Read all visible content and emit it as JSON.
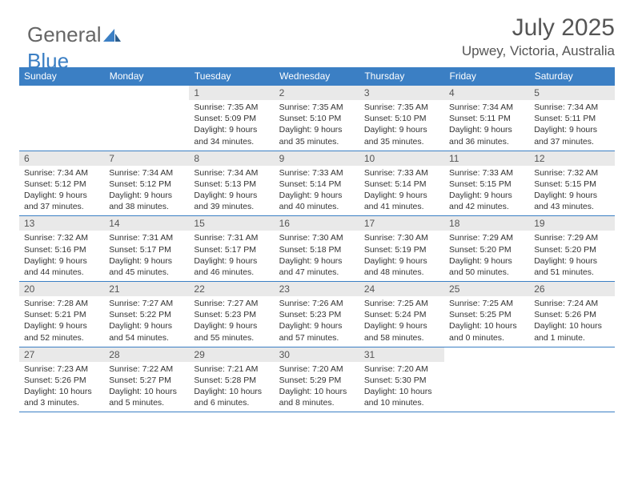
{
  "brand": {
    "part1": "General",
    "part2": "Blue"
  },
  "header": {
    "title": "July 2025",
    "location": "Upwey, Victoria, Australia"
  },
  "style": {
    "accent": "#3b7fc4",
    "daynum_bg": "#e9e9e9",
    "text_color": "#555",
    "body_bg": "#ffffff",
    "title_fontsize": 30,
    "location_fontsize": 17,
    "header_fontsize": 12,
    "cell_fontsize": 10.5
  },
  "weekdays": [
    "Sunday",
    "Monday",
    "Tuesday",
    "Wednesday",
    "Thursday",
    "Friday",
    "Saturday"
  ],
  "first_weekday_index": 2,
  "days": [
    {
      "n": "1",
      "sunrise": "7:35 AM",
      "sunset": "5:09 PM",
      "daylight": "9 hours and 34 minutes."
    },
    {
      "n": "2",
      "sunrise": "7:35 AM",
      "sunset": "5:10 PM",
      "daylight": "9 hours and 35 minutes."
    },
    {
      "n": "3",
      "sunrise": "7:35 AM",
      "sunset": "5:10 PM",
      "daylight": "9 hours and 35 minutes."
    },
    {
      "n": "4",
      "sunrise": "7:34 AM",
      "sunset": "5:11 PM",
      "daylight": "9 hours and 36 minutes."
    },
    {
      "n": "5",
      "sunrise": "7:34 AM",
      "sunset": "5:11 PM",
      "daylight": "9 hours and 37 minutes."
    },
    {
      "n": "6",
      "sunrise": "7:34 AM",
      "sunset": "5:12 PM",
      "daylight": "9 hours and 37 minutes."
    },
    {
      "n": "7",
      "sunrise": "7:34 AM",
      "sunset": "5:12 PM",
      "daylight": "9 hours and 38 minutes."
    },
    {
      "n": "8",
      "sunrise": "7:34 AM",
      "sunset": "5:13 PM",
      "daylight": "9 hours and 39 minutes."
    },
    {
      "n": "9",
      "sunrise": "7:33 AM",
      "sunset": "5:14 PM",
      "daylight": "9 hours and 40 minutes."
    },
    {
      "n": "10",
      "sunrise": "7:33 AM",
      "sunset": "5:14 PM",
      "daylight": "9 hours and 41 minutes."
    },
    {
      "n": "11",
      "sunrise": "7:33 AM",
      "sunset": "5:15 PM",
      "daylight": "9 hours and 42 minutes."
    },
    {
      "n": "12",
      "sunrise": "7:32 AM",
      "sunset": "5:15 PM",
      "daylight": "9 hours and 43 minutes."
    },
    {
      "n": "13",
      "sunrise": "7:32 AM",
      "sunset": "5:16 PM",
      "daylight": "9 hours and 44 minutes."
    },
    {
      "n": "14",
      "sunrise": "7:31 AM",
      "sunset": "5:17 PM",
      "daylight": "9 hours and 45 minutes."
    },
    {
      "n": "15",
      "sunrise": "7:31 AM",
      "sunset": "5:17 PM",
      "daylight": "9 hours and 46 minutes."
    },
    {
      "n": "16",
      "sunrise": "7:30 AM",
      "sunset": "5:18 PM",
      "daylight": "9 hours and 47 minutes."
    },
    {
      "n": "17",
      "sunrise": "7:30 AM",
      "sunset": "5:19 PM",
      "daylight": "9 hours and 48 minutes."
    },
    {
      "n": "18",
      "sunrise": "7:29 AM",
      "sunset": "5:20 PM",
      "daylight": "9 hours and 50 minutes."
    },
    {
      "n": "19",
      "sunrise": "7:29 AM",
      "sunset": "5:20 PM",
      "daylight": "9 hours and 51 minutes."
    },
    {
      "n": "20",
      "sunrise": "7:28 AM",
      "sunset": "5:21 PM",
      "daylight": "9 hours and 52 minutes."
    },
    {
      "n": "21",
      "sunrise": "7:27 AM",
      "sunset": "5:22 PM",
      "daylight": "9 hours and 54 minutes."
    },
    {
      "n": "22",
      "sunrise": "7:27 AM",
      "sunset": "5:23 PM",
      "daylight": "9 hours and 55 minutes."
    },
    {
      "n": "23",
      "sunrise": "7:26 AM",
      "sunset": "5:23 PM",
      "daylight": "9 hours and 57 minutes."
    },
    {
      "n": "24",
      "sunrise": "7:25 AM",
      "sunset": "5:24 PM",
      "daylight": "9 hours and 58 minutes."
    },
    {
      "n": "25",
      "sunrise": "7:25 AM",
      "sunset": "5:25 PM",
      "daylight": "10 hours and 0 minutes."
    },
    {
      "n": "26",
      "sunrise": "7:24 AM",
      "sunset": "5:26 PM",
      "daylight": "10 hours and 1 minute."
    },
    {
      "n": "27",
      "sunrise": "7:23 AM",
      "sunset": "5:26 PM",
      "daylight": "10 hours and 3 minutes."
    },
    {
      "n": "28",
      "sunrise": "7:22 AM",
      "sunset": "5:27 PM",
      "daylight": "10 hours and 5 minutes."
    },
    {
      "n": "29",
      "sunrise": "7:21 AM",
      "sunset": "5:28 PM",
      "daylight": "10 hours and 6 minutes."
    },
    {
      "n": "30",
      "sunrise": "7:20 AM",
      "sunset": "5:29 PM",
      "daylight": "10 hours and 8 minutes."
    },
    {
      "n": "31",
      "sunrise": "7:20 AM",
      "sunset": "5:30 PM",
      "daylight": "10 hours and 10 minutes."
    }
  ],
  "labels": {
    "sunrise_prefix": "Sunrise: ",
    "sunset_prefix": "Sunset: ",
    "daylight_prefix": "Daylight: "
  }
}
